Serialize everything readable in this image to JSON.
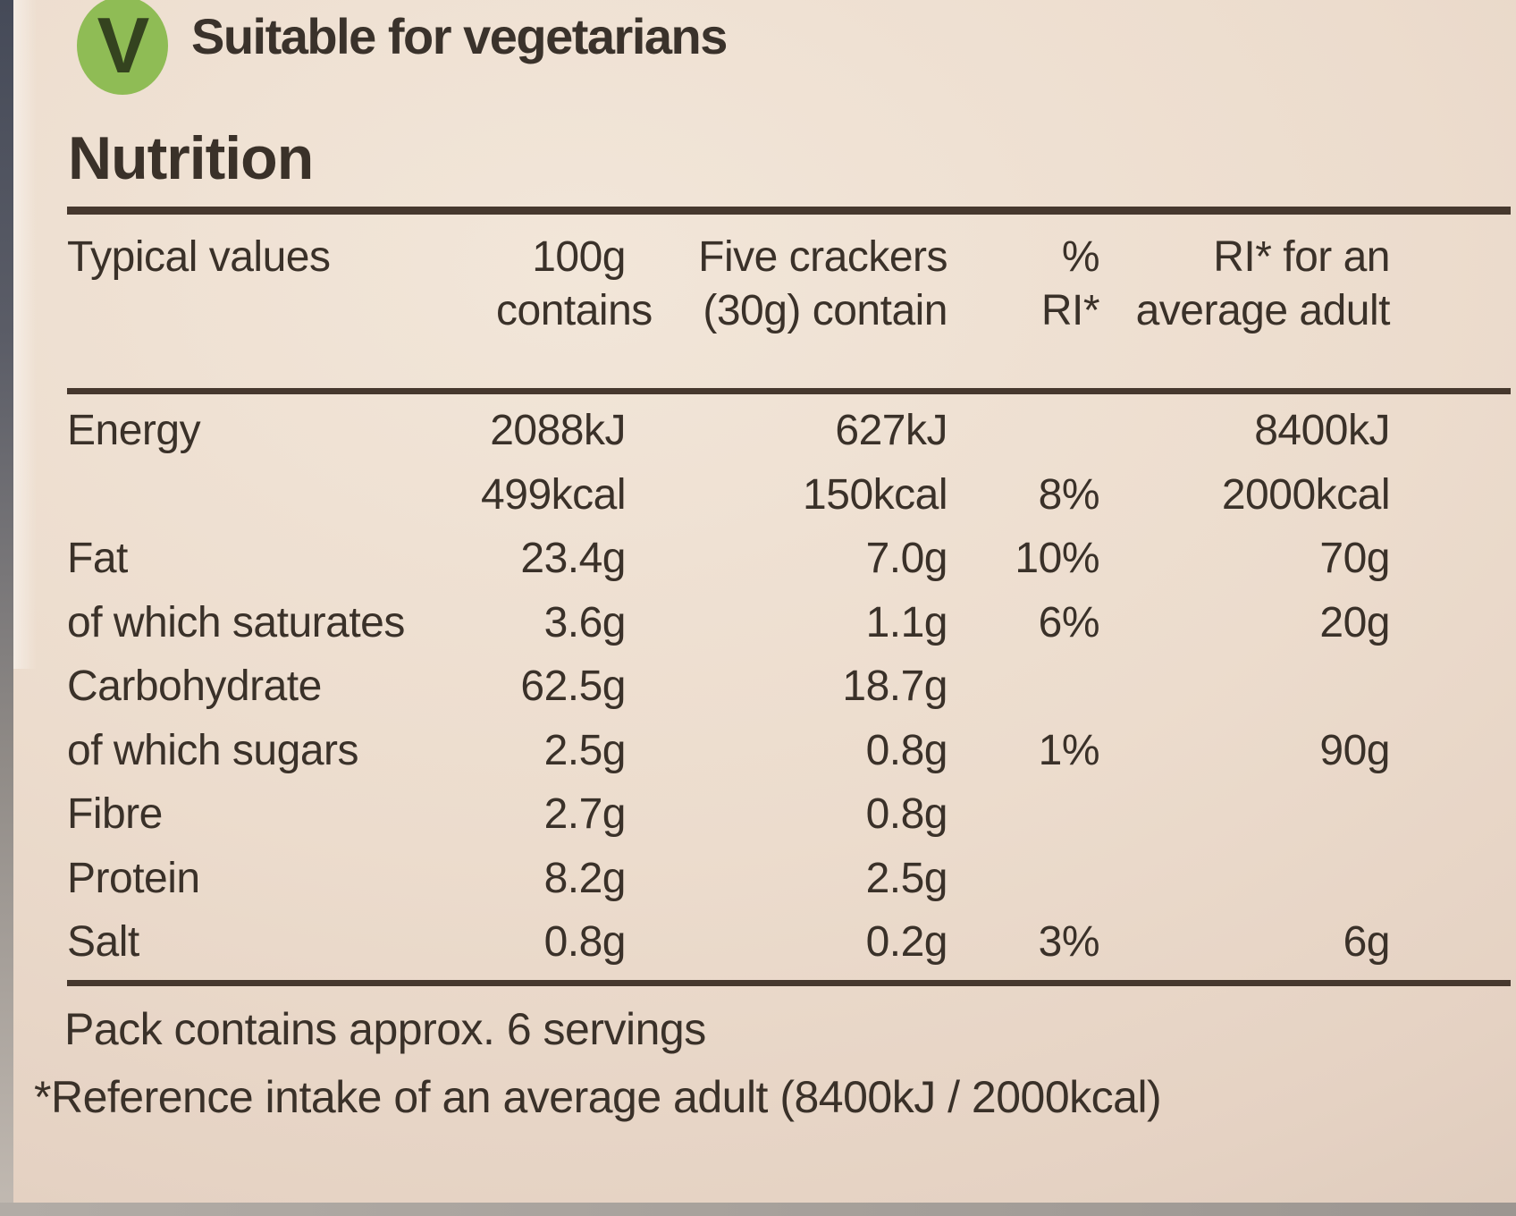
{
  "badge": {
    "letter": "V",
    "label": "Suitable for vegetarians"
  },
  "title": "Nutrition",
  "colors": {
    "badge_green": "#8fbc55",
    "badge_letter": "#34431f",
    "text": "#3a3129",
    "rule": "#46382e",
    "background": "#ead9cb"
  },
  "table": {
    "header": {
      "col_typical": "Typical values",
      "col_100g": [
        "100g",
        "contains"
      ],
      "col_serving": [
        "Five crackers",
        "(30g) contain"
      ],
      "col_ri_pct": [
        "%",
        "RI*"
      ],
      "col_ri_adult": [
        "RI* for an",
        "average adult"
      ]
    },
    "rows": [
      {
        "label": "Energy",
        "per100g": "2088kJ",
        "serving": "627kJ",
        "ri_pct": "",
        "ri_adult": "8400kJ"
      },
      {
        "label": "",
        "per100g": "499kcal",
        "serving": "150kcal",
        "ri_pct": "8%",
        "ri_adult": "2000kcal"
      },
      {
        "label": "Fat",
        "per100g": "23.4g",
        "serving": "7.0g",
        "ri_pct": "10%",
        "ri_adult": "70g"
      },
      {
        "label": "of which saturates",
        "per100g": "3.6g",
        "serving": "1.1g",
        "ri_pct": "6%",
        "ri_adult": "20g"
      },
      {
        "label": "Carbohydrate",
        "per100g": "62.5g",
        "serving": "18.7g",
        "ri_pct": "",
        "ri_adult": ""
      },
      {
        "label": "of which sugars",
        "per100g": "2.5g",
        "serving": "0.8g",
        "ri_pct": "1%",
        "ri_adult": "90g"
      },
      {
        "label": "Fibre",
        "per100g": "2.7g",
        "serving": "0.8g",
        "ri_pct": "",
        "ri_adult": ""
      },
      {
        "label": "Protein",
        "per100g": "8.2g",
        "serving": "2.5g",
        "ri_pct": "",
        "ri_adult": ""
      },
      {
        "label": "Salt",
        "per100g": "0.8g",
        "serving": "0.2g",
        "ri_pct": "3%",
        "ri_adult": "6g"
      }
    ]
  },
  "footer": {
    "servings_note": "Pack contains approx. 6 servings",
    "reference_note": "*Reference intake of an average adult (8400kJ / 2000kcal)"
  }
}
